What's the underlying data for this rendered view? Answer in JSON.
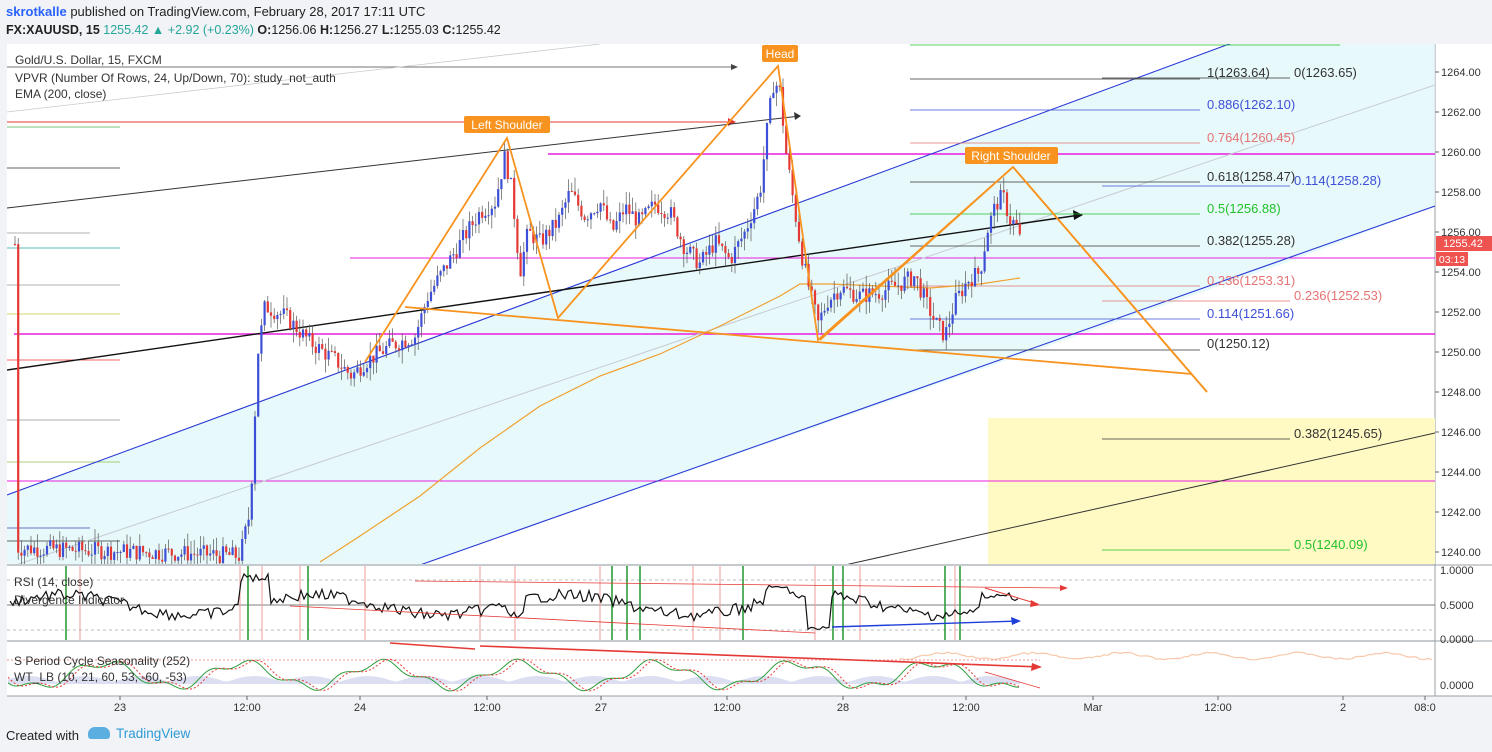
{
  "header": {
    "author": "skrotkalle",
    "published_text": " published on TradingView.com, February 28, 2017 17:11 UTC",
    "symbol": "FX:XAUUSD, 15",
    "last_change": "1255.42 ▲ +2.92 (+0.23%)",
    "ohlc": {
      "o_label": "O:",
      "o": "1256.06",
      "h_label": "H:",
      "h": "1256.27",
      "l_label": "L:",
      "l": "1255.03",
      "c_label": "C:",
      "c": "1255.42"
    }
  },
  "legend": {
    "instrument": "Gold/U.S. Dollar, 15, FXCM",
    "vpvr": "VPVR (Number Of Rows, 24, Up/Down, 70): study_not_auth",
    "ema": "EMA (200, close)"
  },
  "price_axis": {
    "ticks": [
      "1264.00",
      "1262.00",
      "1260.00",
      "1258.00",
      "1256.00",
      "1254.00",
      "1252.00",
      "1250.00",
      "1248.00",
      "1246.00",
      "1244.00",
      "1242.00",
      "1240.00"
    ],
    "last_price": "1255.42",
    "countdown": "03:13",
    "last_price_color": "#ef5350"
  },
  "time_axis": {
    "labels": [
      "23",
      "12:00",
      "24",
      "12:00",
      "27",
      "12:00",
      "28",
      "12:00",
      "Mar",
      "12:00",
      "2",
      "08:0"
    ]
  },
  "annotations": {
    "head": "Head",
    "left_shoulder": "Left Shoulder",
    "right_shoulder": "Right Shoulder",
    "callout_color": "#f7931e"
  },
  "fib_upper": [
    {
      "label": "1(1263.64)",
      "color": "#333333"
    },
    {
      "label": "0(1263.65)",
      "color": "#333333"
    },
    {
      "label": "0.886(1262.10)",
      "color": "#3d4fd6"
    },
    {
      "label": "0.764(1260.45)",
      "color": "#e57373"
    },
    {
      "label": "0.618(1258.47)",
      "color": "#333333"
    },
    {
      "label": "0.114(1258.28)",
      "color": "#3d4fd6"
    },
    {
      "label": "0.5(1256.88)",
      "color": "#22c22b"
    },
    {
      "label": "0.382(1255.28)",
      "color": "#333333"
    },
    {
      "label": "0.236(1253.31)",
      "color": "#e57373"
    },
    {
      "label": "0.236(1252.53)",
      "color": "#e57373"
    },
    {
      "label": "0.114(1251.66)",
      "color": "#3d4fd6"
    },
    {
      "label": "0(1250.12)",
      "color": "#333333"
    }
  ],
  "fib_lower": [
    {
      "label": "0.382(1245.65)",
      "color": "#333333"
    },
    {
      "label": "0.5(1240.09)",
      "color": "#22c22b"
    }
  ],
  "indicators": {
    "rsi_title": "RSI (14, close)",
    "rsi_sub": "Divergence Indicator",
    "rsi_ticks": [
      "1.0000",
      "0.5000",
      "0.0000"
    ],
    "season_title": "S Period Cycle Seasonality (252)",
    "wt_title": "WT_LB (10, 21, 60, 53, -60, -53)",
    "season_ticks": [
      "0.0000"
    ]
  },
  "footer": {
    "created_with": "Created with",
    "brand": "TradingView"
  },
  "chart_data": {
    "type": "candlestick",
    "symbol": "XAUUSD",
    "interval": "15",
    "ylim": [
      1239,
      1265
    ],
    "pattern": "head-and-shoulders",
    "key_points": [
      {
        "name": "Left Shoulder",
        "x": "Feb 24 12:00",
        "y": 1260.6
      },
      {
        "name": "Head",
        "x": "Feb 27 ~15:00",
        "y": 1264.2
      },
      {
        "name": "Right Shoulder",
        "x": "Feb 28 ~13:00",
        "y": 1259.1
      }
    ],
    "last_close": 1255.42,
    "horizontal_levels": [
      1259.95,
      1254.8,
      1250.95,
      1243.6
    ],
    "ema_200": "rising from ~1239.5 (Feb 23 13:00) to ~1253.7 (Feb 28 14:00)"
  }
}
